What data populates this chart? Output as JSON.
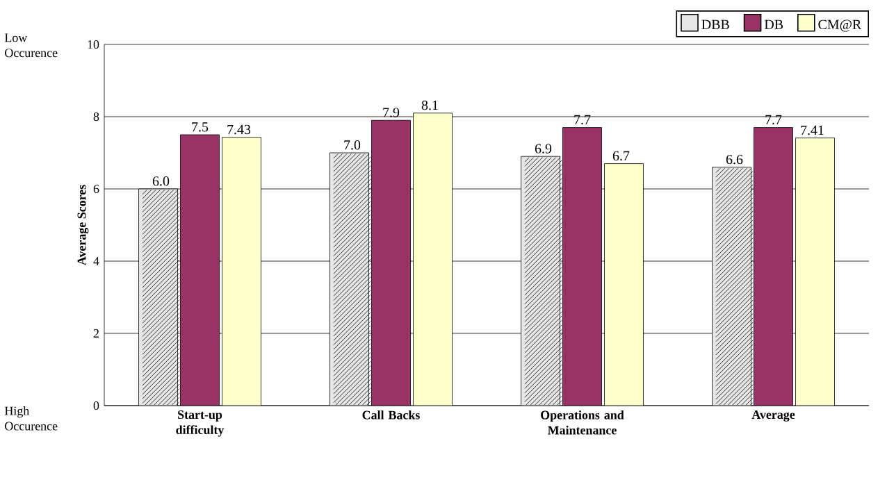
{
  "chart_data": {
    "type": "bar",
    "ylabel": "Average Scores",
    "categories": [
      "Start-up difficulty",
      "Call Backs",
      "Operations and Maintenance",
      "Average"
    ],
    "series": [
      {
        "name": "DBB",
        "color": "#e6e6e6",
        "values": [
          6.0,
          7.0,
          6.9,
          6.6
        ],
        "value_labels": [
          "6.0",
          "7.0",
          "6.9",
          "6.6"
        ]
      },
      {
        "name": "DB",
        "color": "#993366",
        "values": [
          7.5,
          7.9,
          7.7,
          7.7
        ],
        "value_labels": [
          "7.5",
          "7.9",
          "7.7",
          "7.7"
        ]
      },
      {
        "name": "CM@R",
        "color": "#ffffcc",
        "values": [
          7.43,
          8.1,
          6.7,
          7.41
        ],
        "value_labels": [
          "7.43",
          "8.1",
          "6.7",
          "7.41"
        ]
      }
    ],
    "ylim": [
      0,
      10
    ],
    "yticks": [
      0,
      2,
      4,
      6,
      8,
      10
    ],
    "grid": "y",
    "legend": "top right",
    "annotations": [
      "Low Occurence",
      "High Occurence"
    ]
  }
}
